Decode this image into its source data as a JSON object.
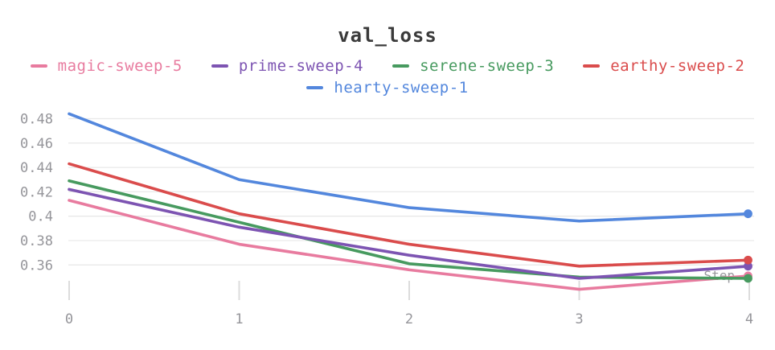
{
  "title": "val_loss",
  "axis": {
    "x_label": "Step",
    "x_ticks": [
      {
        "label": "0",
        "value": 0
      },
      {
        "label": "1",
        "value": 1
      },
      {
        "label": "2",
        "value": 2
      },
      {
        "label": "3",
        "value": 3
      },
      {
        "label": "4",
        "value": 4
      }
    ],
    "y_ticks": [
      {
        "label": "0.48",
        "value": 0.48
      },
      {
        "label": "0.46",
        "value": 0.46
      },
      {
        "label": "0.44",
        "value": 0.44
      },
      {
        "label": "0.42",
        "value": 0.42
      },
      {
        "label": "0.4",
        "value": 0.4
      },
      {
        "label": "0.38",
        "value": 0.38
      },
      {
        "label": "0.36",
        "value": 0.36
      }
    ]
  },
  "colors": {
    "title_text": "#3a3a3a",
    "axis_text": "#95959a",
    "gridline": "#e9e9e9",
    "tick_mark": "#dcdcdc",
    "step_label": "#98989d"
  },
  "chart_data": {
    "type": "line",
    "title": "val_loss",
    "xlabel": "Step",
    "ylabel": "",
    "x": [
      0,
      1,
      2,
      3,
      4
    ],
    "xlim": [
      0,
      4
    ],
    "ylim": [
      0.335,
      0.49
    ],
    "grid": "horizontal",
    "legend_position": "top",
    "end_markers": true,
    "series": [
      {
        "name": "magic-sweep-5",
        "color": "#E87B9F",
        "values": [
          0.413,
          0.377,
          0.356,
          0.34,
          0.351
        ]
      },
      {
        "name": "prime-sweep-4",
        "color": "#7D54B2",
        "values": [
          0.422,
          0.391,
          0.368,
          0.349,
          0.359
        ]
      },
      {
        "name": "serene-sweep-3",
        "color": "#479A5F",
        "values": [
          0.429,
          0.395,
          0.361,
          0.35,
          0.349
        ]
      },
      {
        "name": "earthy-sweep-2",
        "color": "#DA4C4C",
        "values": [
          0.443,
          0.402,
          0.377,
          0.359,
          0.364
        ]
      },
      {
        "name": "hearty-sweep-1",
        "color": "#5387DD",
        "values": [
          0.484,
          0.43,
          0.407,
          0.396,
          0.402
        ]
      }
    ]
  }
}
